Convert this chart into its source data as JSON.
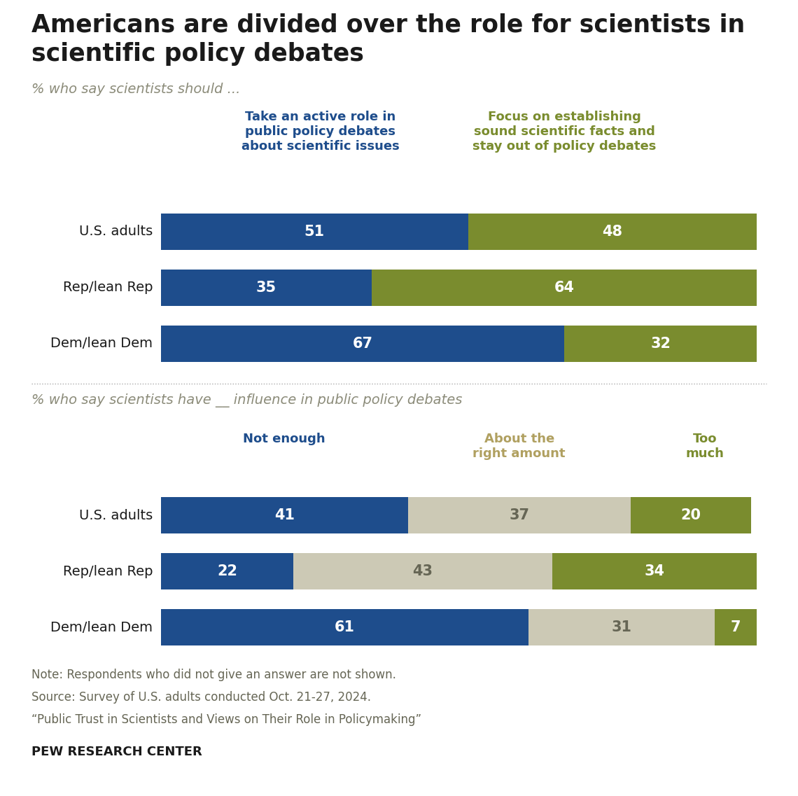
{
  "title_line1": "Americans are divided over the role for scientists in",
  "title_line2": "scientific policy debates",
  "subtitle1": "% who say scientists should ...",
  "subtitle2": "% who say scientists have __ influence in public policy debates",
  "chart1": {
    "categories": [
      "U.S. adults",
      "Rep/lean Rep",
      "Dem/lean Dem"
    ],
    "col1_label": "Take an active role in\npublic policy debates\nabout scientific issues",
    "col2_label": "Focus on establishing\nsound scientific facts and\nstay out of policy debates",
    "col1_values": [
      51,
      35,
      67
    ],
    "col2_values": [
      48,
      64,
      32
    ],
    "col1_color": "#1e4d8c",
    "col2_color": "#7a8c2e"
  },
  "chart2": {
    "categories": [
      "U.S. adults",
      "Rep/lean Rep",
      "Dem/lean Dem"
    ],
    "col1_label": "Not enough",
    "col2_label": "About the\nright amount",
    "col3_label": "Too\nmuch",
    "col1_values": [
      41,
      22,
      61
    ],
    "col2_values": [
      37,
      43,
      31
    ],
    "col3_values": [
      20,
      34,
      7
    ],
    "col1_color": "#1e4d8c",
    "col2_color": "#ccc9b5",
    "col3_color": "#7a8c2e"
  },
  "note_lines": [
    "Note: Respondents who did not give an answer are not shown.",
    "Source: Survey of U.S. adults conducted Oct. 21-27, 2024.",
    "“Public Trust in Scientists and Views on Their Role in Policymaking”"
  ],
  "pew_label": "PEW RESEARCH CENTER",
  "bg_color": "#ffffff",
  "title_color": "#1a1a1a",
  "subtitle_color": "#8c8c7a",
  "category_color": "#1a1a1a",
  "header1_color": "#1e4d8c",
  "header2_color": "#7a8c2e",
  "header2b_color": "#b0a060",
  "note_color": "#666655",
  "bar_label_color1": "#ffffff",
  "bar_label_color2_chart1": "#ffffff",
  "bar_label_color2_chart2": "#555544",
  "bar_label_color3": "#ffffff"
}
